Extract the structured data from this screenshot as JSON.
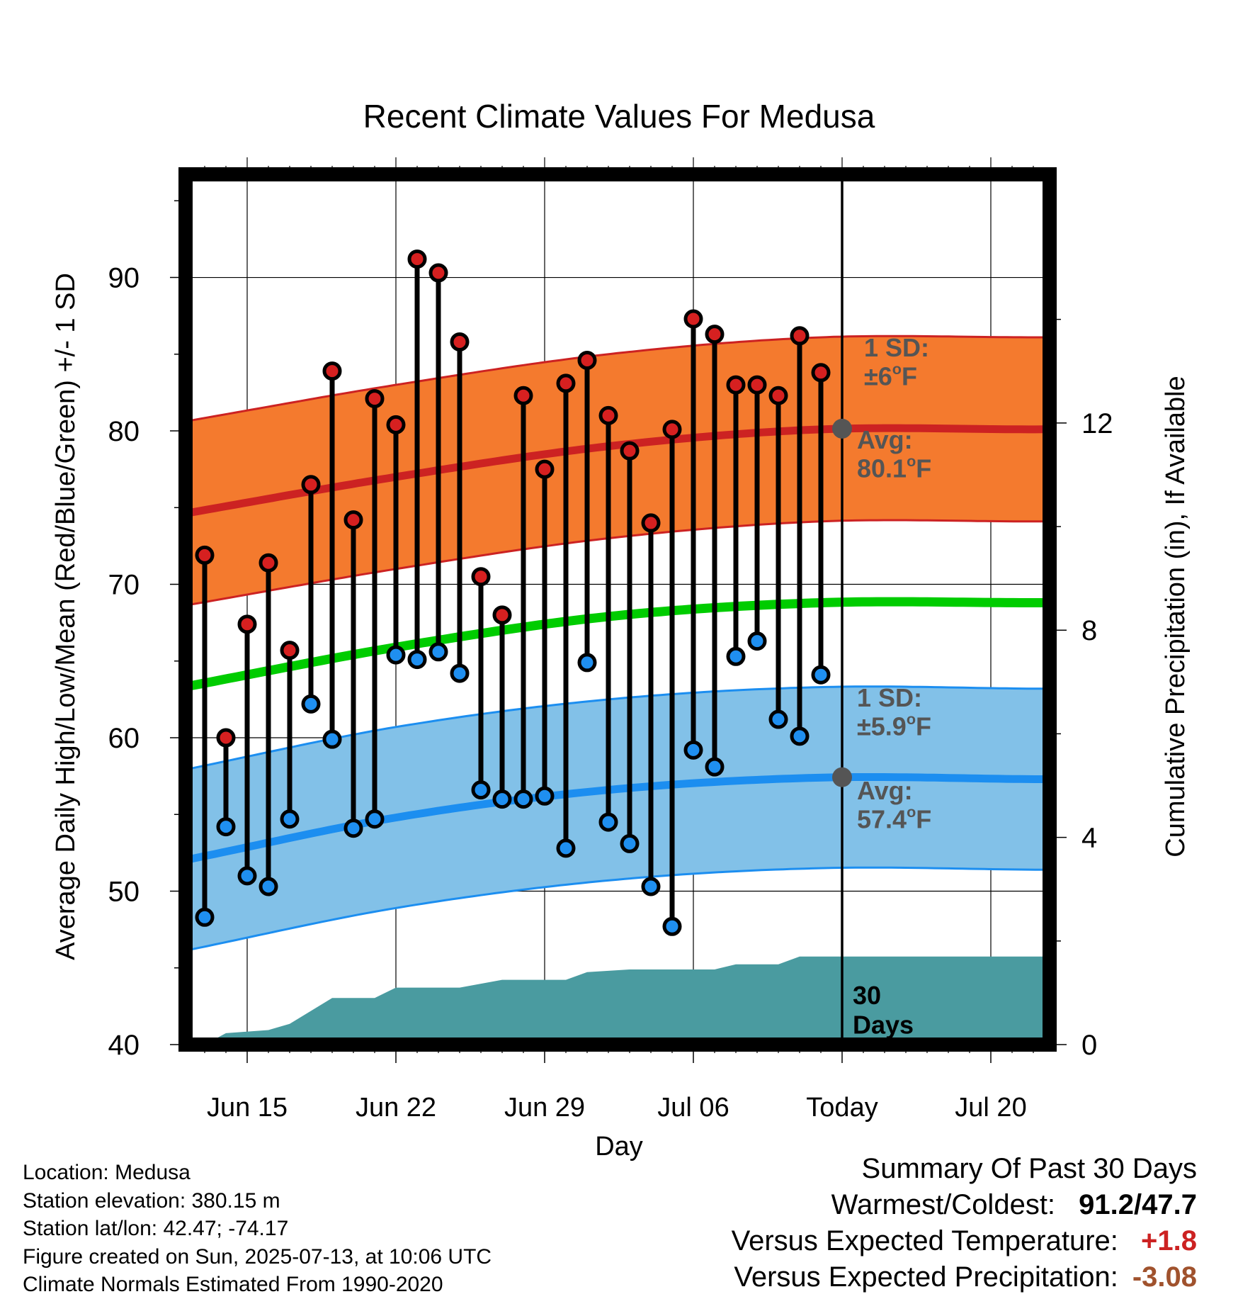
{
  "chart_data": {
    "type": "line",
    "title": "Recent Climate Values For Medusa",
    "xlabel": "Day",
    "ylabel": "Average Daily High/Low/Mean (Red/Blue/Green) +/- 1 SD",
    "y2label": "Cumulative Precipitation (in), If Available",
    "ylim": [
      40,
      97
    ],
    "y2lim": [
      0,
      16.8
    ],
    "y_ticks": [
      "40",
      "50",
      "60",
      "70",
      "80",
      "90"
    ],
    "y2_ticks": [
      "0",
      "4",
      "8",
      "12"
    ],
    "x_ticks": [
      "Jun 15",
      "Jun 22",
      "Jun 29",
      "Jul 06",
      "Today",
      "Jul 20"
    ],
    "grid": true,
    "today_label": "Today",
    "days": [
      "2025-06-13",
      "2025-06-14",
      "2025-06-15",
      "2025-06-16",
      "2025-06-17",
      "2025-06-18",
      "2025-06-19",
      "2025-06-20",
      "2025-06-21",
      "2025-06-22",
      "2025-06-23",
      "2025-06-24",
      "2025-06-25",
      "2025-06-26",
      "2025-06-27",
      "2025-06-28",
      "2025-06-29",
      "2025-06-30",
      "2025-07-01",
      "2025-07-02",
      "2025-07-03",
      "2025-07-04",
      "2025-07-05",
      "2025-07-06",
      "2025-07-07",
      "2025-07-08",
      "2025-07-09",
      "2025-07-10",
      "2025-07-11",
      "2025-07-12"
    ],
    "highs": [
      71.9,
      60.0,
      67.4,
      71.4,
      65.7,
      76.5,
      83.9,
      74.2,
      82.1,
      80.4,
      91.2,
      90.3,
      85.8,
      70.5,
      68.0,
      82.3,
      77.5,
      83.1,
      84.6,
      81.0,
      78.7,
      74.0,
      80.1,
      87.3,
      86.3,
      83.0,
      83.0,
      82.3,
      86.2,
      83.8
    ],
    "lows": [
      48.3,
      54.2,
      51.0,
      50.3,
      54.7,
      62.2,
      59.9,
      54.1,
      54.7,
      65.4,
      65.1,
      65.6,
      64.2,
      56.6,
      56.0,
      56.0,
      56.2,
      52.8,
      64.9,
      54.5,
      53.1,
      50.3,
      47.7,
      59.2,
      58.1,
      65.3,
      66.3,
      61.2,
      60.1,
      64.1
    ],
    "normal_high": {
      "x": [
        "2025-06-12",
        "2025-06-22",
        "2025-07-02",
        "2025-07-12",
        "2025-07-22"
      ],
      "values": [
        74.6,
        77.0,
        79.0,
        80.1,
        80.1
      ]
    },
    "normal_high_sd": 6,
    "normal_low": {
      "x": [
        "2025-06-12",
        "2025-06-22",
        "2025-07-02",
        "2025-07-12",
        "2025-07-22"
      ],
      "values": [
        52.0,
        54.8,
        56.6,
        57.4,
        57.3
      ]
    },
    "normal_low_sd": 5.9,
    "normal_mean": {
      "x": [
        "2025-06-12",
        "2025-06-22",
        "2025-07-02",
        "2025-07-12",
        "2025-07-22"
      ],
      "values": [
        63.3,
        65.9,
        67.9,
        68.8,
        68.8
      ]
    },
    "precip_cumulative": {
      "x": [
        "2025-06-13",
        "2025-06-14",
        "2025-06-16",
        "2025-06-17",
        "2025-06-18",
        "2025-06-19",
        "2025-06-21",
        "2025-06-22",
        "2025-06-25",
        "2025-06-27",
        "2025-06-30",
        "2025-07-01",
        "2025-07-03",
        "2025-07-07",
        "2025-07-08",
        "2025-07-10",
        "2025-07-11",
        "2025-07-23"
      ],
      "values": [
        0.0,
        0.22,
        0.28,
        0.4,
        0.65,
        0.9,
        0.9,
        1.1,
        1.1,
        1.25,
        1.25,
        1.4,
        1.45,
        1.45,
        1.55,
        1.55,
        1.7,
        1.7
      ]
    },
    "annotations": {
      "high_sd": [
        "1 SD:",
        "±6",
        "o",
        "F"
      ],
      "high_avg": [
        "Avg:",
        "80.1",
        "o",
        "F"
      ],
      "low_sd": [
        "1 SD:",
        "±5.9",
        "o",
        "F"
      ],
      "low_avg": [
        "Avg:",
        "57.4",
        "o",
        "F"
      ],
      "precip_days": [
        "30",
        "Days"
      ]
    },
    "colors": {
      "high_band": "#f47a2e",
      "high_line": "#cc2222",
      "low_band": "#82c1e8",
      "low_line": "#1c8ef0",
      "mean_line": "#00cc00",
      "precip": "#4a9ba0",
      "high_dot": "#d62020",
      "low_dot": "#1f8ff0",
      "annotation": "#555555"
    }
  },
  "info": {
    "location": "Location: Medusa",
    "elevation": "Station elevation: 380.15 m",
    "latlon": "Station lat/lon: 42.47; -74.17",
    "created": "Figure created on Sun, 2025-07-13, at 10:06 UTC",
    "normals": "Climate Normals Estimated From 1990-2020"
  },
  "summary": {
    "title": "Summary Of Past 30 Days",
    "warm_cold_label": "Warmest/Coldest:",
    "warm_cold_value": "91.2/47.7",
    "temp_label": "Versus Expected Temperature:",
    "temp_value": "+1.8",
    "temp_color": "#cc2222",
    "precip_label": "Versus Expected Precipitation:",
    "precip_value": "-3.08",
    "precip_color": "#a0522d"
  }
}
